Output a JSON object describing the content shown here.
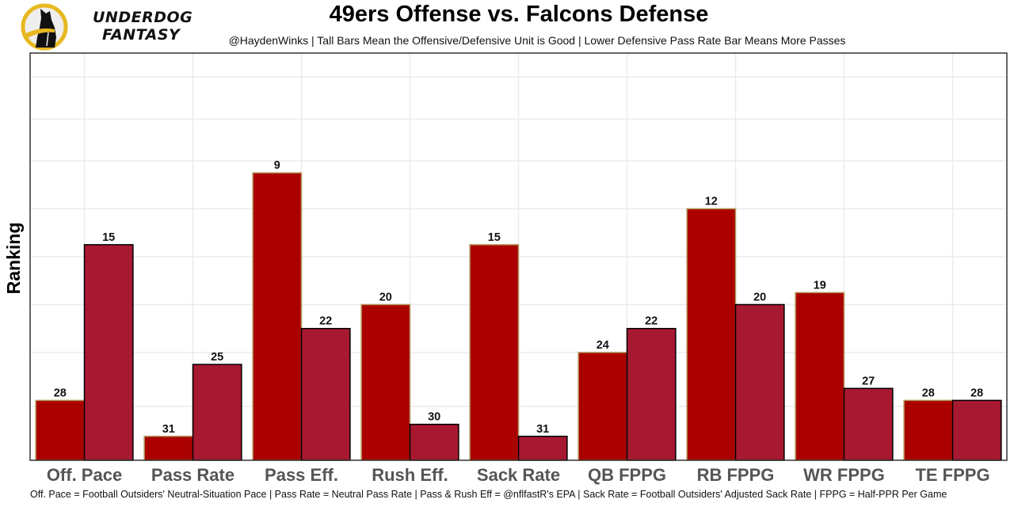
{
  "logo": {
    "icon": "underdog-dog-icon",
    "line1": "UNDERDOG",
    "line2": "FANTASY",
    "colors": {
      "ring": "#E7B820",
      "dog": "#111111",
      "bg": "#EEEEEE"
    }
  },
  "footer": "Off. Pace = Football Outsiders' Neutral-Situation Pace | Pass Rate = Neutral Pass Rate | Pass & Rush Eff = @nflfastR's EPA | Sack Rate = Football Outsiders' Adjusted Sack Rate | FPPG = Half-PPR Per Game",
  "chart_data": {
    "type": "bar",
    "title": "49ers Offense vs. Falcons Defense",
    "subtitle": "@HaydenWinks | Tall Bars Mean the Offensive/Defensive Unit is Good | Lower Defensive Pass Rate Bar Means More Passes",
    "xlabel": "",
    "ylabel": "Ranking",
    "y_inverted": true,
    "ylim": [
      33,
      -1
    ],
    "grid": true,
    "legend": "none",
    "categories": [
      "Off. Pace",
      "Pass Rate",
      "Pass Eff.",
      "Rush Eff.",
      "Sack Rate",
      "QB FPPG",
      "RB FPPG",
      "WR FPPG",
      "TE FPPG"
    ],
    "series": [
      {
        "name": "49ers Offense",
        "color": "#AA0000",
        "outline": "#B3995D",
        "values": [
          28,
          31,
          9,
          20,
          15,
          24,
          12,
          19,
          28
        ]
      },
      {
        "name": "Falcons Defense",
        "color": "#A71930",
        "outline": "#000000",
        "values": [
          15,
          25,
          22,
          30,
          31,
          22,
          20,
          27,
          28
        ]
      }
    ]
  }
}
